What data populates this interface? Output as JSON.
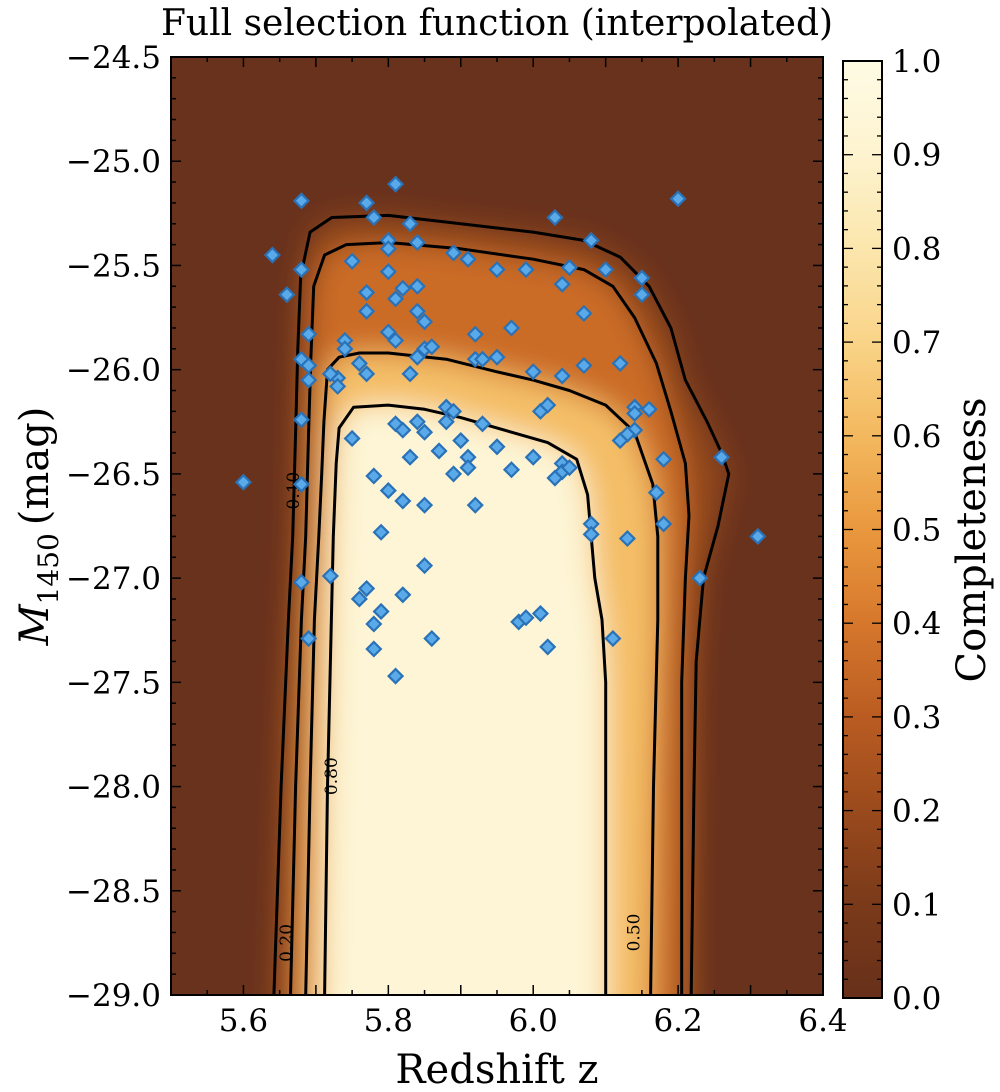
{
  "chart_data": {
    "type": "heatmap",
    "title": "Full selection function (interpolated)",
    "xlabel": "Redshift z",
    "ylabel_main": "M",
    "ylabel_sub": "1450",
    "ylabel_unit": "(mag)",
    "colorbar_label": "Completeness",
    "xlim": [
      5.5,
      6.4
    ],
    "ylim": [
      -29.0,
      -24.5
    ],
    "x_ticks": [
      5.6,
      5.8,
      6.0,
      6.2,
      6.4
    ],
    "x_tick_labels": [
      "5.6",
      "5.8",
      "6.0",
      "6.2",
      "6.4"
    ],
    "y_ticks": [
      -24.5,
      -25.0,
      -25.5,
      -26.0,
      -26.5,
      -27.0,
      -27.5,
      -28.0,
      -28.5,
      -29.0
    ],
    "y_tick_labels": [
      "−24.5",
      "−25.0",
      "−25.5",
      "−26.0",
      "−26.5",
      "−27.0",
      "−27.5",
      "−28.0",
      "−28.5",
      "−29.0"
    ],
    "colorbar_ticks": [
      0.0,
      0.1,
      0.2,
      0.3,
      0.4,
      0.5,
      0.6,
      0.7,
      0.8,
      0.9,
      1.0
    ],
    "colorbar_tick_labels": [
      "0.0",
      "0.1",
      "0.2",
      "0.3",
      "0.4",
      "0.5",
      "0.6",
      "0.7",
      "0.8",
      "0.9",
      "1.0"
    ],
    "colormap": [
      "#67301a",
      "#7a3a1a",
      "#9a4a1c",
      "#ba5c22",
      "#d6772c",
      "#e9983e",
      "#f3b85e",
      "#f9d488",
      "#fbe6ad",
      "#fdf3cf",
      "#fefbe4"
    ],
    "contours": [
      {
        "level": 0.1,
        "label": "0.10",
        "path": [
          [
            5.642,
            -29.0
          ],
          [
            5.652,
            -28.0
          ],
          [
            5.662,
            -27.2
          ],
          [
            5.668,
            -26.8
          ],
          [
            5.672,
            -26.3
          ],
          [
            5.675,
            -25.9
          ],
          [
            5.679,
            -25.55
          ],
          [
            5.692,
            -25.34
          ],
          [
            5.722,
            -25.27
          ],
          [
            5.8,
            -25.26
          ],
          [
            5.9,
            -25.3
          ],
          [
            6.0,
            -25.34
          ],
          [
            6.07,
            -25.38
          ],
          [
            6.12,
            -25.46
          ],
          [
            6.16,
            -25.6
          ],
          [
            6.19,
            -25.8
          ],
          [
            6.21,
            -26.05
          ],
          [
            6.24,
            -26.25
          ],
          [
            6.26,
            -26.4
          ],
          [
            6.27,
            -26.5
          ],
          [
            6.255,
            -26.75
          ],
          [
            6.235,
            -27.0
          ],
          [
            6.225,
            -27.4
          ],
          [
            6.222,
            -28.0
          ],
          [
            6.218,
            -29.0
          ]
        ]
      },
      {
        "level": 0.2,
        "label": "0.20",
        "path": [
          [
            5.665,
            -29.0
          ],
          [
            5.672,
            -28.0
          ],
          [
            5.68,
            -27.2
          ],
          [
            5.686,
            -26.8
          ],
          [
            5.69,
            -26.3
          ],
          [
            5.693,
            -25.95
          ],
          [
            5.697,
            -25.6
          ],
          [
            5.712,
            -25.45
          ],
          [
            5.742,
            -25.4
          ],
          [
            5.8,
            -25.39
          ],
          [
            5.9,
            -25.42
          ],
          [
            6.0,
            -25.47
          ],
          [
            6.07,
            -25.52
          ],
          [
            6.11,
            -25.6
          ],
          [
            6.14,
            -25.75
          ],
          [
            6.17,
            -25.97
          ],
          [
            6.19,
            -26.2
          ],
          [
            6.21,
            -26.45
          ],
          [
            6.215,
            -26.7
          ],
          [
            6.21,
            -27.0
          ],
          [
            6.205,
            -27.5
          ],
          [
            6.205,
            -28.0
          ],
          [
            6.205,
            -29.0
          ]
        ]
      },
      {
        "level": 0.5,
        "label": "0.50",
        "path": [
          [
            5.686,
            -29.0
          ],
          [
            5.692,
            -28.0
          ],
          [
            5.698,
            -27.2
          ],
          [
            5.704,
            -26.8
          ],
          [
            5.708,
            -26.5
          ],
          [
            5.711,
            -26.25
          ],
          [
            5.716,
            -26.0
          ],
          [
            5.732,
            -25.94
          ],
          [
            5.76,
            -25.92
          ],
          [
            5.8,
            -25.92
          ],
          [
            5.88,
            -25.95
          ],
          [
            5.95,
            -26.01
          ],
          [
            6.0,
            -26.05
          ],
          [
            6.05,
            -26.1
          ],
          [
            6.1,
            -26.17
          ],
          [
            6.14,
            -26.3
          ],
          [
            6.165,
            -26.55
          ],
          [
            6.172,
            -26.8
          ],
          [
            6.172,
            -27.2
          ],
          [
            6.166,
            -28.0
          ],
          [
            6.162,
            -29.0
          ]
        ]
      },
      {
        "level": 0.8,
        "label": "0.80",
        "path": [
          [
            5.712,
            -29.0
          ],
          [
            5.716,
            -28.0
          ],
          [
            5.72,
            -27.4
          ],
          [
            5.724,
            -26.8
          ],
          [
            5.728,
            -26.45
          ],
          [
            5.732,
            -26.28
          ],
          [
            5.752,
            -26.18
          ],
          [
            5.8,
            -26.17
          ],
          [
            5.85,
            -26.19
          ],
          [
            5.9,
            -26.23
          ],
          [
            5.97,
            -26.3
          ],
          [
            6.02,
            -26.35
          ],
          [
            6.06,
            -26.43
          ],
          [
            6.075,
            -26.6
          ],
          [
            6.08,
            -26.8
          ],
          [
            6.085,
            -27.0
          ],
          [
            6.095,
            -27.2
          ],
          [
            6.1,
            -27.5
          ],
          [
            6.1,
            -28.0
          ],
          [
            6.1,
            -29.0
          ]
        ]
      }
    ],
    "contour_labels": [
      {
        "text": "0.10",
        "x": 5.67,
        "y": -26.58
      },
      {
        "text": "0.80",
        "x": 5.722,
        "y": -27.95
      },
      {
        "text": "0.20",
        "x": 5.66,
        "y": -28.75
      },
      {
        "text": "0.50",
        "x": 6.14,
        "y": -28.7
      }
    ],
    "points": [
      [
        5.68,
        -25.19
      ],
      [
        5.81,
        -25.11
      ],
      [
        6.2,
        -25.18
      ],
      [
        5.64,
        -25.45
      ],
      [
        5.68,
        -25.52
      ],
      [
        5.66,
        -25.64
      ],
      [
        5.69,
        -25.83
      ],
      [
        5.68,
        -25.95
      ],
      [
        5.69,
        -25.98
      ],
      [
        5.69,
        -26.05
      ],
      [
        5.68,
        -26.24
      ],
      [
        5.68,
        -26.55
      ],
      [
        5.6,
        -26.54
      ],
      [
        5.68,
        -27.02
      ],
      [
        5.69,
        -27.29
      ],
      [
        5.77,
        -25.2
      ],
      [
        5.78,
        -25.27
      ],
      [
        5.83,
        -25.3
      ],
      [
        5.8,
        -25.38
      ],
      [
        5.8,
        -25.42
      ],
      [
        5.84,
        -25.39
      ],
      [
        5.75,
        -25.48
      ],
      [
        5.8,
        -25.53
      ],
      [
        5.77,
        -25.63
      ],
      [
        5.84,
        -25.6
      ],
      [
        5.82,
        -25.61
      ],
      [
        5.81,
        -25.66
      ],
      [
        5.77,
        -25.72
      ],
      [
        5.84,
        -25.72
      ],
      [
        5.85,
        -25.77
      ],
      [
        5.8,
        -25.82
      ],
      [
        5.81,
        -25.86
      ],
      [
        5.74,
        -25.86
      ],
      [
        5.74,
        -25.9
      ],
      [
        5.85,
        -25.9
      ],
      [
        5.86,
        -25.89
      ],
      [
        5.84,
        -25.94
      ],
      [
        5.76,
        -25.97
      ],
      [
        5.77,
        -26.02
      ],
      [
        5.73,
        -26.04
      ],
      [
        5.72,
        -26.02
      ],
      [
        5.73,
        -26.08
      ],
      [
        5.83,
        -26.02
      ],
      [
        5.81,
        -26.26
      ],
      [
        5.82,
        -26.29
      ],
      [
        5.84,
        -26.25
      ],
      [
        5.85,
        -26.3
      ],
      [
        5.83,
        -26.42
      ],
      [
        5.75,
        -26.33
      ],
      [
        5.78,
        -26.51
      ],
      [
        5.8,
        -26.58
      ],
      [
        5.82,
        -26.63
      ],
      [
        5.85,
        -26.65
      ],
      [
        5.79,
        -26.78
      ],
      [
        5.85,
        -26.94
      ],
      [
        5.72,
        -26.99
      ],
      [
        5.77,
        -27.05
      ],
      [
        5.76,
        -27.1
      ],
      [
        5.79,
        -27.16
      ],
      [
        5.82,
        -27.08
      ],
      [
        5.78,
        -27.22
      ],
      [
        5.78,
        -27.34
      ],
      [
        5.81,
        -27.47
      ],
      [
        5.86,
        -27.29
      ],
      [
        5.89,
        -25.44
      ],
      [
        5.91,
        -25.47
      ],
      [
        5.95,
        -25.52
      ],
      [
        5.99,
        -25.52
      ],
      [
        6.03,
        -25.27
      ],
      [
        6.04,
        -25.59
      ],
      [
        6.05,
        -25.51
      ],
      [
        6.08,
        -25.38
      ],
      [
        6.1,
        -25.52
      ],
      [
        6.15,
        -25.56
      ],
      [
        6.15,
        -25.64
      ],
      [
        6.07,
        -25.73
      ],
      [
        5.92,
        -25.83
      ],
      [
        5.97,
        -25.8
      ],
      [
        5.92,
        -25.95
      ],
      [
        5.93,
        -25.95
      ],
      [
        5.95,
        -25.94
      ],
      [
        6.0,
        -26.01
      ],
      [
        6.04,
        -26.03
      ],
      [
        6.07,
        -25.98
      ],
      [
        6.12,
        -25.97
      ],
      [
        5.88,
        -26.18
      ],
      [
        5.89,
        -26.2
      ],
      [
        5.88,
        -26.25
      ],
      [
        5.93,
        -26.26
      ],
      [
        5.9,
        -26.34
      ],
      [
        5.87,
        -26.39
      ],
      [
        5.91,
        -26.42
      ],
      [
        5.91,
        -26.47
      ],
      [
        5.89,
        -26.5
      ],
      [
        5.95,
        -26.37
      ],
      [
        6.01,
        -26.2
      ],
      [
        6.02,
        -26.17
      ],
      [
        6.0,
        -26.42
      ],
      [
        6.04,
        -26.45
      ],
      [
        6.04,
        -26.49
      ],
      [
        6.05,
        -26.47
      ],
      [
        6.03,
        -26.52
      ],
      [
        5.97,
        -26.48
      ],
      [
        5.92,
        -26.65
      ],
      [
        6.14,
        -26.18
      ],
      [
        6.14,
        -26.21
      ],
      [
        6.14,
        -26.29
      ],
      [
        6.13,
        -26.31
      ],
      [
        6.12,
        -26.34
      ],
      [
        6.16,
        -26.19
      ],
      [
        6.18,
        -26.43
      ],
      [
        6.17,
        -26.59
      ],
      [
        6.18,
        -26.74
      ],
      [
        6.26,
        -26.42
      ],
      [
        6.31,
        -26.8
      ],
      [
        6.08,
        -26.74
      ],
      [
        6.08,
        -26.79
      ],
      [
        6.13,
        -26.81
      ],
      [
        6.23,
        -27.0
      ],
      [
        6.11,
        -27.29
      ],
      [
        5.98,
        -27.21
      ],
      [
        5.99,
        -27.19
      ],
      [
        6.01,
        -27.17
      ],
      [
        6.02,
        -27.33
      ]
    ]
  }
}
